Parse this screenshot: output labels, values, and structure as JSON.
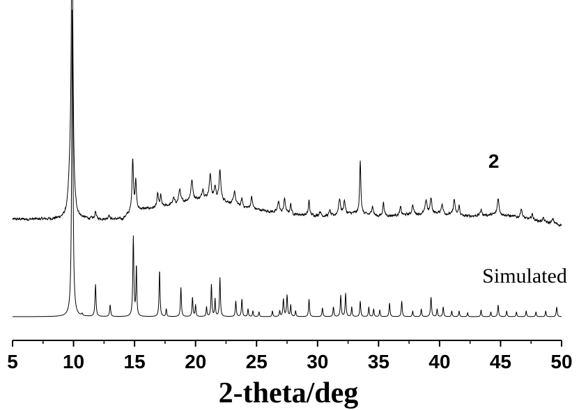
{
  "chart_data": {
    "type": "line",
    "title": "",
    "xlabel": "2-theta/deg",
    "ylabel": "",
    "xlim": [
      5,
      50
    ],
    "x_ticks": [
      5,
      10,
      15,
      20,
      25,
      30,
      35,
      40,
      45,
      50
    ],
    "grid": false,
    "colors": {
      "line": "#000000",
      "axis": "#000000",
      "background": "#ffffff"
    },
    "annotations": [
      {
        "id": "label-2",
        "text": "2",
        "x": 44,
        "y": 1.53
      },
      {
        "id": "label-simulated",
        "text": "Simulated",
        "x": 43.5,
        "y": 0.35
      }
    ],
    "series": [
      {
        "id": "experimental",
        "baseline": 1.0,
        "noise": 0.025,
        "ramp": [
          [
            5,
            0.0
          ],
          [
            14,
            0.0
          ],
          [
            14.5,
            0.05
          ],
          [
            15.5,
            0.1
          ],
          [
            17,
            0.12
          ],
          [
            19,
            0.18
          ],
          [
            21,
            0.22
          ],
          [
            22,
            0.2
          ],
          [
            24,
            0.12
          ],
          [
            26,
            0.08
          ],
          [
            28,
            0.05
          ],
          [
            31,
            0.03
          ],
          [
            33,
            0.06
          ],
          [
            35,
            0.03
          ],
          [
            38,
            0.05
          ],
          [
            40,
            0.06
          ],
          [
            42,
            0.03
          ],
          [
            45,
            0.05
          ],
          [
            50,
            -0.06
          ]
        ],
        "peaks": [
          [
            9.88,
            3.1,
            0.08
          ],
          [
            9.7,
            0.3,
            0.15
          ],
          [
            11.8,
            0.08,
            0.06
          ],
          [
            12.9,
            0.05,
            0.06
          ],
          [
            14.85,
            0.55,
            0.07
          ],
          [
            15.1,
            0.32,
            0.06
          ],
          [
            16.9,
            0.14,
            0.07
          ],
          [
            17.15,
            0.12,
            0.06
          ],
          [
            18.2,
            0.06,
            0.08
          ],
          [
            18.7,
            0.14,
            0.08
          ],
          [
            19.7,
            0.2,
            0.1
          ],
          [
            20.6,
            0.1,
            0.08
          ],
          [
            21.2,
            0.24,
            0.09
          ],
          [
            21.6,
            0.12,
            0.08
          ],
          [
            22.0,
            0.3,
            0.08
          ],
          [
            23.2,
            0.14,
            0.08
          ],
          [
            23.8,
            0.08,
            0.07
          ],
          [
            24.6,
            0.12,
            0.08
          ],
          [
            26.8,
            0.12,
            0.08
          ],
          [
            27.3,
            0.15,
            0.08
          ],
          [
            27.8,
            0.1,
            0.07
          ],
          [
            29.3,
            0.15,
            0.06
          ],
          [
            30.2,
            0.05,
            0.07
          ],
          [
            31.0,
            0.06,
            0.07
          ],
          [
            31.8,
            0.16,
            0.1
          ],
          [
            32.2,
            0.14,
            0.08
          ],
          [
            33.5,
            0.55,
            0.06
          ],
          [
            34.5,
            0.1,
            0.08
          ],
          [
            35.4,
            0.14,
            0.07
          ],
          [
            36.8,
            0.08,
            0.07
          ],
          [
            37.8,
            0.1,
            0.08
          ],
          [
            38.9,
            0.14,
            0.09
          ],
          [
            39.3,
            0.16,
            0.08
          ],
          [
            40.2,
            0.1,
            0.08
          ],
          [
            41.2,
            0.16,
            0.08
          ],
          [
            41.6,
            0.1,
            0.07
          ],
          [
            43.4,
            0.06,
            0.07
          ],
          [
            44.8,
            0.17,
            0.08
          ],
          [
            46.7,
            0.1,
            0.08
          ],
          [
            47.6,
            0.06,
            0.08
          ],
          [
            48.5,
            0.04,
            0.08
          ],
          [
            49.3,
            0.05,
            0.08
          ]
        ]
      },
      {
        "id": "simulated",
        "baseline": 0.0,
        "noise": 0.0,
        "ramp": [
          [
            5,
            0.0
          ],
          [
            50,
            0.0
          ]
        ],
        "peaks": [
          [
            9.9,
            3.15,
            0.06
          ],
          [
            10.7,
            0.02,
            0.05
          ],
          [
            11.8,
            0.33,
            0.05
          ],
          [
            13.0,
            0.12,
            0.05
          ],
          [
            14.9,
            0.82,
            0.05
          ],
          [
            15.15,
            0.52,
            0.04
          ],
          [
            17.05,
            0.48,
            0.045
          ],
          [
            17.6,
            0.08,
            0.04
          ],
          [
            18.8,
            0.3,
            0.045
          ],
          [
            19.75,
            0.2,
            0.045
          ],
          [
            20.0,
            0.12,
            0.04
          ],
          [
            20.9,
            0.1,
            0.04
          ],
          [
            21.3,
            0.33,
            0.045
          ],
          [
            21.6,
            0.18,
            0.04
          ],
          [
            22.0,
            0.4,
            0.045
          ],
          [
            23.3,
            0.16,
            0.045
          ],
          [
            23.8,
            0.18,
            0.045
          ],
          [
            24.3,
            0.08,
            0.04
          ],
          [
            24.7,
            0.06,
            0.04
          ],
          [
            25.2,
            0.05,
            0.04
          ],
          [
            26.3,
            0.06,
            0.04
          ],
          [
            26.9,
            0.06,
            0.04
          ],
          [
            27.2,
            0.18,
            0.05
          ],
          [
            27.5,
            0.22,
            0.05
          ],
          [
            27.8,
            0.12,
            0.04
          ],
          [
            28.2,
            0.06,
            0.04
          ],
          [
            29.3,
            0.18,
            0.045
          ],
          [
            30.4,
            0.09,
            0.045
          ],
          [
            31.3,
            0.1,
            0.045
          ],
          [
            31.9,
            0.22,
            0.045
          ],
          [
            32.3,
            0.24,
            0.045
          ],
          [
            32.8,
            0.1,
            0.04
          ],
          [
            33.5,
            0.16,
            0.045
          ],
          [
            34.2,
            0.1,
            0.04
          ],
          [
            34.6,
            0.08,
            0.04
          ],
          [
            35.1,
            0.07,
            0.04
          ],
          [
            35.9,
            0.14,
            0.045
          ],
          [
            36.9,
            0.16,
            0.045
          ],
          [
            37.8,
            0.06,
            0.04
          ],
          [
            38.5,
            0.08,
            0.04
          ],
          [
            39.3,
            0.2,
            0.05
          ],
          [
            39.8,
            0.08,
            0.04
          ],
          [
            40.3,
            0.1,
            0.045
          ],
          [
            41.0,
            0.06,
            0.04
          ],
          [
            41.6,
            0.06,
            0.04
          ],
          [
            42.3,
            0.04,
            0.04
          ],
          [
            43.4,
            0.07,
            0.04
          ],
          [
            44.2,
            0.05,
            0.04
          ],
          [
            44.8,
            0.12,
            0.045
          ],
          [
            45.5,
            0.06,
            0.04
          ],
          [
            46.3,
            0.05,
            0.04
          ],
          [
            47.1,
            0.06,
            0.04
          ],
          [
            47.9,
            0.05,
            0.04
          ],
          [
            48.7,
            0.06,
            0.04
          ],
          [
            49.6,
            0.1,
            0.045
          ]
        ]
      }
    ]
  }
}
